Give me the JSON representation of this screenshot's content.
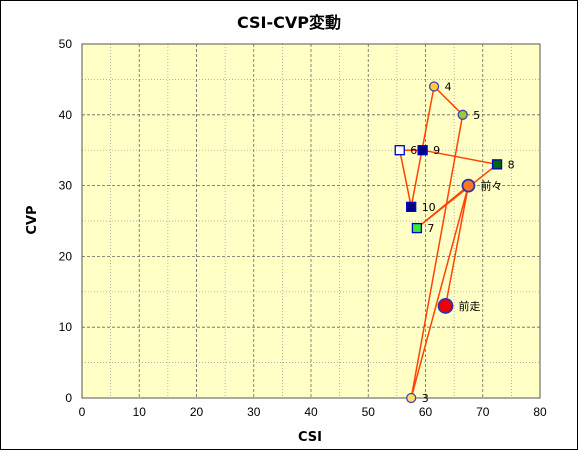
{
  "chart_data": {
    "type": "scatter",
    "title": "CSI-CVP変動",
    "xlabel": "CSI",
    "ylabel": "CVP",
    "xlim": [
      0,
      80
    ],
    "ylim": [
      0,
      50
    ],
    "x_ticks": [
      "0",
      "10",
      "20",
      "30",
      "40",
      "50",
      "60",
      "70",
      "80"
    ],
    "y_ticks": [
      "0",
      "10",
      "20",
      "30",
      "40",
      "50"
    ],
    "grid": true,
    "plot_background": "#ffffc6",
    "line_color": "#ff4400",
    "points": [
      {
        "label": "3",
        "x": 57.5,
        "y": 0,
        "marker": "circle",
        "size": "small",
        "fill": "#ffe060",
        "stroke": "#4444aa"
      },
      {
        "label": "4",
        "x": 61.5,
        "y": 44,
        "marker": "circle",
        "size": "small",
        "fill": "#ffcc33",
        "stroke": "#4444aa"
      },
      {
        "label": "5",
        "x": 66.5,
        "y": 40,
        "marker": "circle",
        "size": "small",
        "fill": "#99cc33",
        "stroke": "#4444aa"
      },
      {
        "label": "6",
        "x": 55.5,
        "y": 35,
        "marker": "square",
        "size": "small",
        "fill": "#ffffff",
        "stroke": "#0000cc"
      },
      {
        "label": "7",
        "x": 58.5,
        "y": 24,
        "marker": "square",
        "size": "small",
        "fill": "#33ee33",
        "stroke": "#0000cc"
      },
      {
        "label": "8",
        "x": 72.5,
        "y": 33,
        "marker": "square",
        "size": "small",
        "fill": "#006600",
        "stroke": "#0000cc"
      },
      {
        "label": "9",
        "x": 59.5,
        "y": 35,
        "marker": "square",
        "size": "small",
        "fill": "#000080",
        "stroke": "#0000cc"
      },
      {
        "label": "10",
        "x": 57.5,
        "y": 27,
        "marker": "square",
        "size": "small",
        "fill": "#000080",
        "stroke": "#0000cc"
      },
      {
        "label": "前々",
        "x": 67.5,
        "y": 30,
        "marker": "circle",
        "size": "medium",
        "fill": "#ff7722",
        "stroke": "#3333aa"
      },
      {
        "label": "前走",
        "x": 63.5,
        "y": 13,
        "marker": "circle",
        "size": "large",
        "fill": "#ee0000",
        "stroke": "#3333aa"
      }
    ],
    "path_order": [
      "前走",
      "前々",
      "7",
      "8",
      "9",
      "6",
      "10",
      "4",
      "5",
      "3",
      "前々"
    ]
  }
}
